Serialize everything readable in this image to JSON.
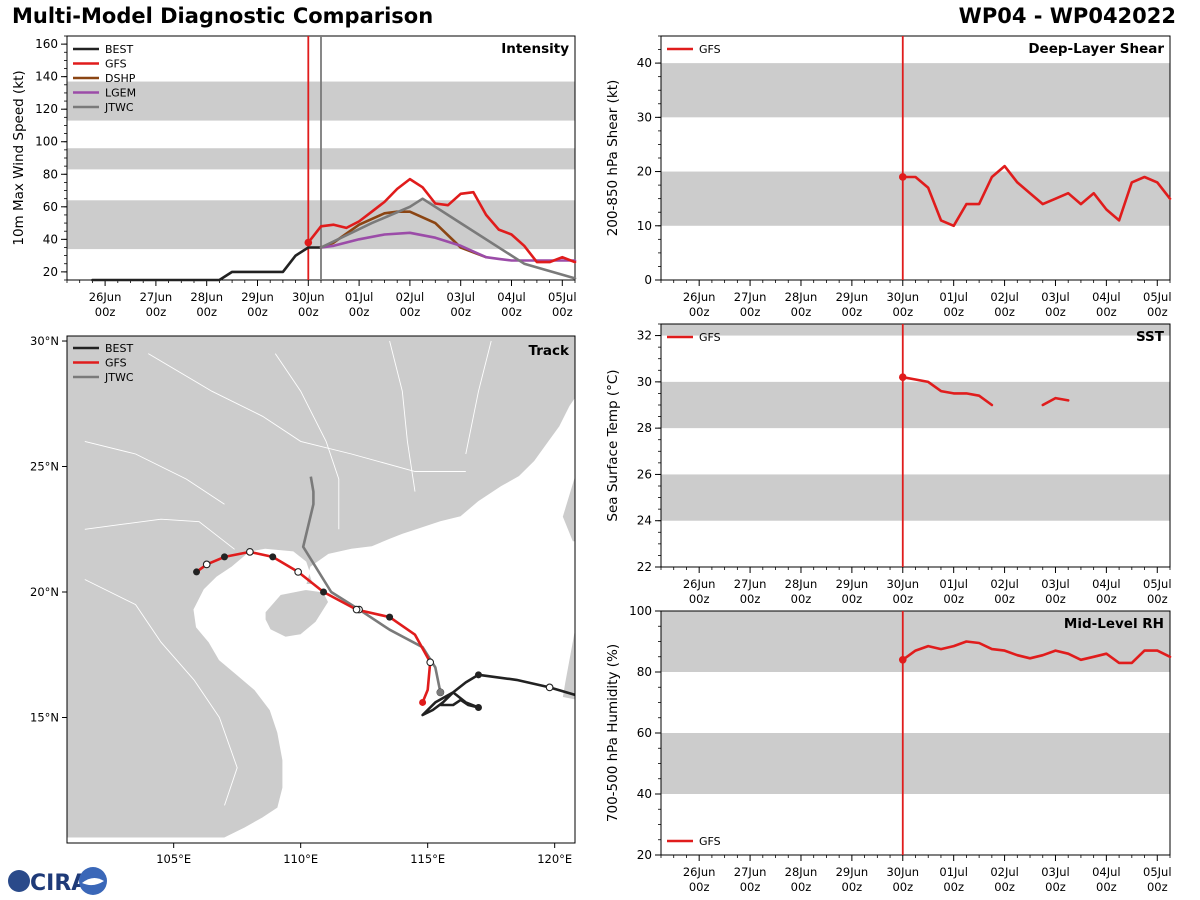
{
  "header": {
    "title": "Multi-Model Diagnostic Comparison",
    "storm_id": "WP04 - WP042022"
  },
  "logo": {
    "text": "CIRA"
  },
  "colors": {
    "BEST": "#222222",
    "GFS": "#e01c1c",
    "DSHP": "#8b4513",
    "LGEM": "#9b4ca8",
    "JTWC": "#7a7a7a",
    "band": "#cccccc",
    "land": "#cccccc",
    "init_line": "#e01c1c",
    "jtwc_line": "#888888"
  },
  "time_axis": {
    "ticks": [
      {
        "day": 0,
        "label1": "26Jun",
        "label2": "00z"
      },
      {
        "day": 1,
        "label1": "27Jun",
        "label2": "00z"
      },
      {
        "day": 2,
        "label1": "28Jun",
        "label2": "00z"
      },
      {
        "day": 3,
        "label1": "29Jun",
        "label2": "00z"
      },
      {
        "day": 4,
        "label1": "30Jun",
        "label2": "00z"
      },
      {
        "day": 5,
        "label1": "01Jul",
        "label2": "00z"
      },
      {
        "day": 6,
        "label1": "02Jul",
        "label2": "00z"
      },
      {
        "day": 7,
        "label1": "03Jul",
        "label2": "00z"
      },
      {
        "day": 8,
        "label1": "04Jul",
        "label2": "00z"
      },
      {
        "day": 9,
        "label1": "05Jul",
        "label2": "00z"
      }
    ]
  },
  "chart_data": [
    {
      "id": "intensity",
      "type": "line",
      "title": "Intensity",
      "ylabel": "10m Max Wind Speed (kt)",
      "xlim": [
        -0.75,
        9.25
      ],
      "ylim": [
        15,
        165
      ],
      "yticks": [
        20,
        40,
        60,
        80,
        100,
        120,
        140,
        160
      ],
      "bands": [
        [
          34,
          64
        ],
        [
          83,
          96
        ],
        [
          113,
          137
        ]
      ],
      "vlines": [
        {
          "x": 4.0,
          "color": "GFS"
        },
        {
          "x": 4.25,
          "color": "JTWC"
        }
      ],
      "legend": [
        "BEST",
        "GFS",
        "DSHP",
        "LGEM",
        "JTWC"
      ],
      "series": [
        {
          "name": "BEST",
          "x": [
            -0.25,
            0.0,
            0.25,
            0.5,
            0.75,
            1.0,
            1.5,
            1.75,
            2.0,
            2.25,
            2.5,
            2.75,
            3.0,
            3.25,
            3.5,
            3.75,
            4.0,
            4.25
          ],
          "y": [
            15,
            15,
            15,
            15,
            15,
            15,
            15,
            15,
            15,
            15,
            20,
            20,
            20,
            20,
            20,
            30,
            35,
            35
          ]
        },
        {
          "name": "GFS",
          "x": [
            4.0,
            4.25,
            4.5,
            4.75,
            5.0,
            5.25,
            5.5,
            5.75,
            6.0,
            6.25,
            6.5,
            6.75,
            7.0,
            7.25,
            7.5,
            7.75,
            8.0,
            8.25,
            8.5,
            8.75,
            9.0,
            9.25
          ],
          "y": [
            38,
            48,
            49,
            47,
            51,
            57,
            63,
            71,
            77,
            72,
            62,
            61,
            68,
            69,
            55,
            46,
            43,
            36,
            26,
            26,
            29,
            26
          ]
        },
        {
          "name": "DSHP",
          "x": [
            4.25,
            4.5,
            5.0,
            5.5,
            5.75,
            6.0,
            6.5,
            7.0,
            7.5
          ],
          "y": [
            35,
            38,
            49,
            56,
            57,
            57,
            50,
            35,
            29
          ]
        },
        {
          "name": "LGEM",
          "x": [
            4.25,
            4.5,
            5.0,
            5.5,
            6.0,
            6.5,
            7.0,
            7.5,
            7.75,
            8.0,
            8.5,
            9.0,
            9.25
          ],
          "y": [
            35,
            36,
            40,
            43,
            44,
            41,
            36,
            29,
            28,
            27,
            27,
            27,
            27
          ]
        },
        {
          "name": "JTWC",
          "x": [
            4.25,
            5.25,
            6.0,
            6.25,
            7.0,
            8.25,
            9.25
          ],
          "y": [
            35,
            50,
            60,
            65,
            50,
            25,
            16
          ]
        }
      ],
      "markers": [
        {
          "series": "GFS",
          "x": 4.0,
          "y": 38
        }
      ]
    },
    {
      "id": "shear",
      "type": "line",
      "title": "Deep-Layer Shear",
      "ylabel": "200-850 hPa Shear (kt)",
      "xlim": [
        -0.75,
        9.25
      ],
      "ylim": [
        0,
        45
      ],
      "yticks": [
        0,
        10,
        20,
        30,
        40
      ],
      "bands": [
        [
          10,
          20
        ],
        [
          30,
          40
        ]
      ],
      "vlines": [
        {
          "x": 4.0,
          "color": "GFS"
        }
      ],
      "legend": [
        "GFS"
      ],
      "series": [
        {
          "name": "GFS",
          "x": [
            4.0,
            4.25,
            4.5,
            4.75,
            5.0,
            5.25,
            5.5,
            5.75,
            6.0,
            6.25,
            6.5,
            6.75,
            7.0,
            7.25,
            7.5,
            7.75,
            8.0,
            8.25,
            8.5,
            8.75,
            9.0,
            9.25
          ],
          "y": [
            19,
            19,
            17,
            11,
            10,
            14,
            14,
            19,
            21,
            18,
            16,
            14,
            15,
            16,
            14,
            16,
            13,
            11,
            18,
            19,
            18,
            15
          ]
        }
      ],
      "markers": [
        {
          "series": "GFS",
          "x": 4.0,
          "y": 19
        }
      ]
    },
    {
      "id": "sst",
      "type": "line",
      "title": "SST",
      "ylabel": "Sea Surface Temp (°C)",
      "xlim": [
        -0.75,
        9.25
      ],
      "ylim": [
        22,
        32.5
      ],
      "yticks": [
        22,
        24,
        26,
        28,
        30,
        32
      ],
      "bands": [
        [
          24,
          26
        ],
        [
          28,
          30
        ],
        [
          32,
          32.5
        ]
      ],
      "vlines": [
        {
          "x": 4.0,
          "color": "GFS"
        }
      ],
      "legend": [
        "GFS"
      ],
      "series": [
        {
          "name": "GFS",
          "segments": [
            {
              "x": [
                4.0,
                4.25,
                4.5,
                4.75,
                5.0,
                5.25,
                5.5,
                5.75
              ],
              "y": [
                30.2,
                30.1,
                30.0,
                29.6,
                29.5,
                29.5,
                29.4,
                29.0
              ]
            },
            {
              "x": [
                6.75,
                7.0,
                7.25
              ],
              "y": [
                29.0,
                29.3,
                29.2
              ]
            }
          ]
        }
      ],
      "markers": [
        {
          "series": "GFS",
          "x": 4.0,
          "y": 30.2
        }
      ]
    },
    {
      "id": "rh",
      "type": "line",
      "title": "Mid-Level RH",
      "ylabel": "700-500 hPa Humidity (%)",
      "xlim": [
        -0.75,
        9.25
      ],
      "ylim": [
        20,
        100
      ],
      "yticks": [
        20,
        40,
        60,
        80,
        100
      ],
      "bands": [
        [
          40,
          60
        ],
        [
          80,
          100
        ]
      ],
      "vlines": [
        {
          "x": 4.0,
          "color": "GFS"
        }
      ],
      "legend": [
        "GFS"
      ],
      "legend_position": "bottom-left",
      "series": [
        {
          "name": "GFS",
          "x": [
            4.0,
            4.25,
            4.5,
            4.75,
            5.0,
            5.25,
            5.5,
            5.75,
            6.0,
            6.25,
            6.5,
            6.75,
            7.0,
            7.25,
            7.5,
            7.75,
            8.0,
            8.25,
            8.5,
            8.75,
            9.0,
            9.25
          ],
          "y": [
            84,
            87,
            88.5,
            87.5,
            88.5,
            90,
            89.5,
            87.5,
            87,
            85.5,
            84.5,
            85.5,
            87,
            86,
            84,
            85,
            86,
            83,
            83,
            87,
            87,
            85
          ]
        }
      ],
      "markers": [
        {
          "series": "GFS",
          "x": 4.0,
          "y": 84
        }
      ]
    },
    {
      "id": "track",
      "type": "scatter",
      "title": "Track",
      "xlim": [
        100.8,
        120.8
      ],
      "ylim": [
        10.0,
        30.2
      ],
      "xticks": [
        {
          "v": 105,
          "label": "105°E"
        },
        {
          "v": 110,
          "label": "110°E"
        },
        {
          "v": 115,
          "label": "115°E"
        },
        {
          "v": 120,
          "label": "120°E"
        }
      ],
      "yticks": [
        {
          "v": 15,
          "label": "15°N"
        },
        {
          "v": 20,
          "label": "20°N"
        },
        {
          "v": 25,
          "label": "25°N"
        },
        {
          "v": 30,
          "label": "30°N"
        }
      ],
      "legend": [
        "BEST",
        "GFS",
        "JTWC"
      ],
      "series": [
        {
          "name": "BEST",
          "lon": [
            120.8,
            119.8,
            118.5,
            117.0,
            116.5,
            116.0,
            115.6,
            115.2,
            114.8,
            115.3,
            116.0,
            116.5,
            117.0,
            116.6,
            116.3,
            116.0,
            115.5
          ],
          "lat": [
            15.9,
            16.2,
            16.5,
            16.7,
            16.4,
            16.0,
            15.6,
            15.3,
            15.1,
            15.6,
            16.0,
            15.6,
            15.4,
            15.5,
            15.7,
            15.5,
            15.5
          ],
          "filled": [
            3,
            12
          ],
          "open": [
            1
          ]
        },
        {
          "name": "GFS",
          "lon": [
            114.8,
            115.0,
            115.1,
            114.5,
            113.5,
            112.2,
            110.9,
            109.9,
            108.9,
            108.0,
            107.0,
            106.3,
            105.9
          ],
          "lat": [
            15.6,
            16.1,
            17.2,
            18.3,
            19.0,
            19.3,
            20.0,
            20.8,
            21.4,
            21.6,
            21.4,
            21.1,
            20.8
          ],
          "filled": [
            0,
            4,
            6,
            8,
            10,
            12
          ],
          "open": [
            2,
            5,
            7,
            9,
            11
          ]
        },
        {
          "name": "JTWC",
          "lon": [
            115.5,
            115.3,
            114.8,
            113.5,
            112.3,
            111.2,
            110.1,
            110.5,
            110.5,
            110.4
          ],
          "lat": [
            16.0,
            17.0,
            17.8,
            18.5,
            19.3,
            20.0,
            21.8,
            23.5,
            24.0,
            24.6
          ],
          "filled": [],
          "open": [
            0,
            4
          ]
        }
      ]
    }
  ]
}
